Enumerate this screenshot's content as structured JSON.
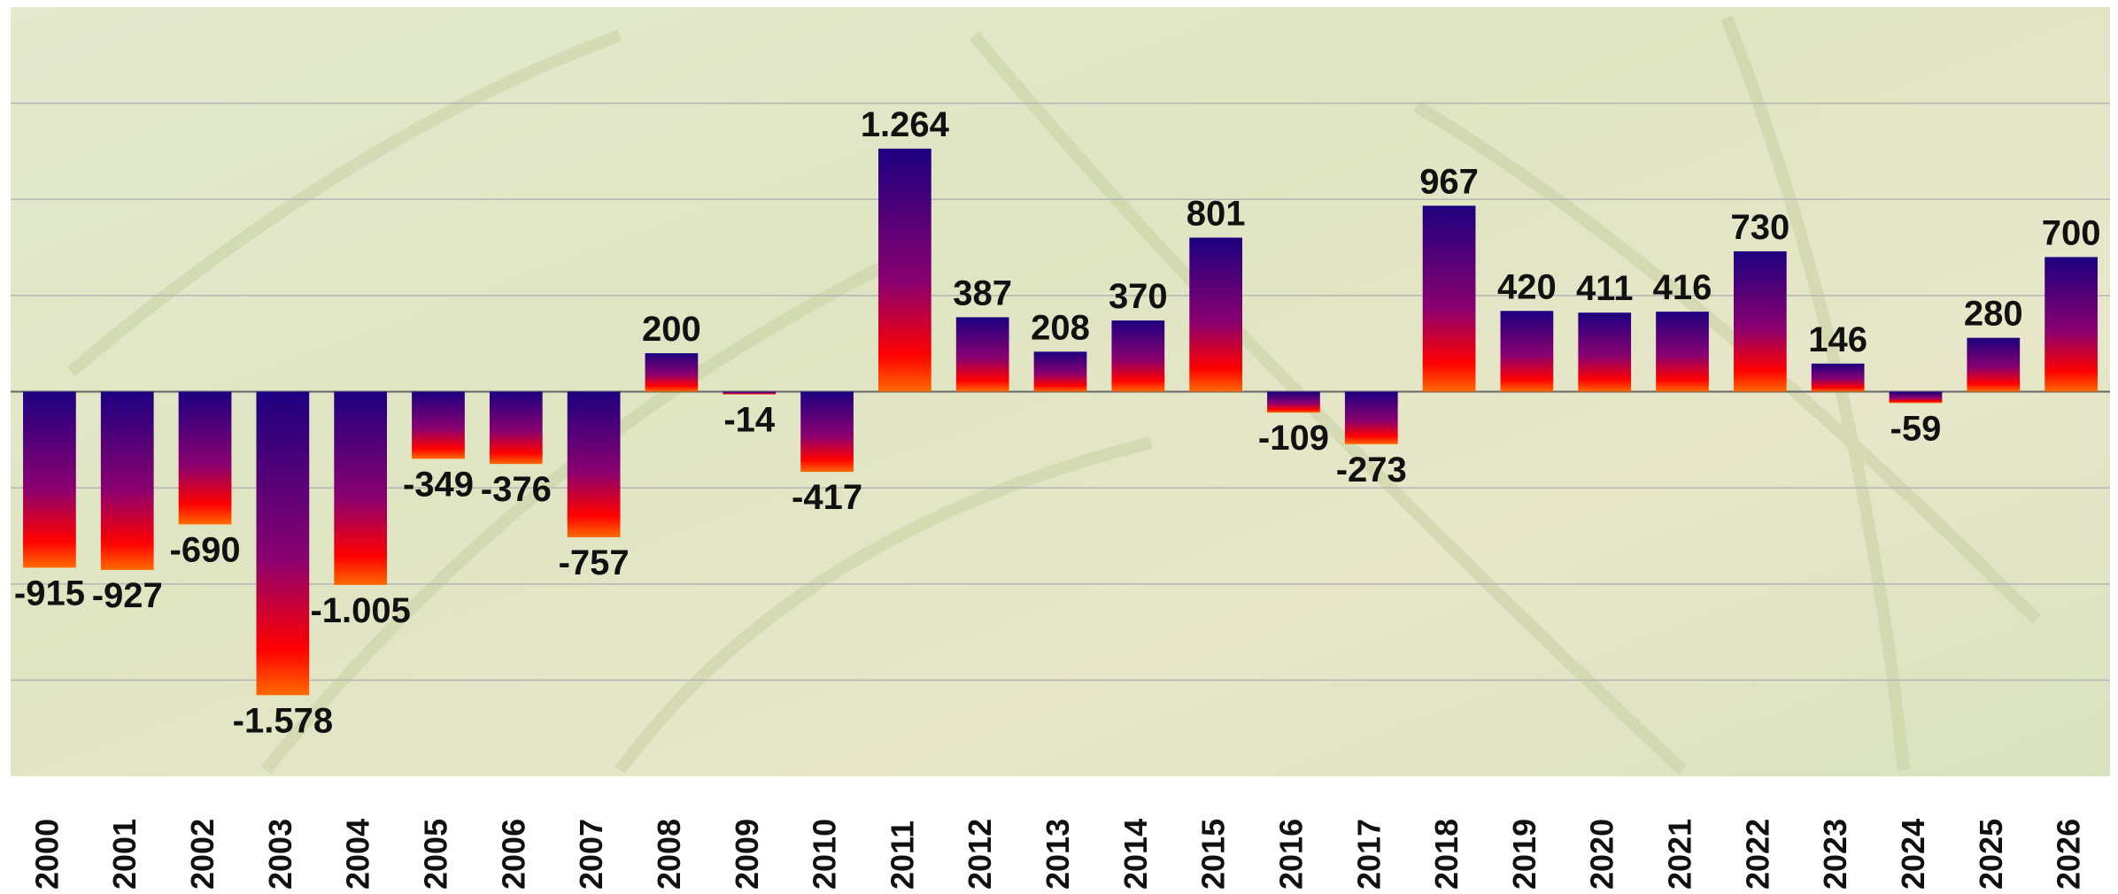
{
  "chart_data": {
    "type": "bar",
    "categories": [
      "2000",
      "2001",
      "2002",
      "2003",
      "2004",
      "2005",
      "2006",
      "2007",
      "2008",
      "2009",
      "2010",
      "2011",
      "2012",
      "2013",
      "2014",
      "2015",
      "2016",
      "2017",
      "2018",
      "2019",
      "2020",
      "2021",
      "2022",
      "2023",
      "2024",
      "2025",
      "2026"
    ],
    "values": [
      -915,
      -927,
      -690,
      -1578,
      -1005,
      -349,
      -376,
      -757,
      200,
      -14,
      -417,
      1264,
      387,
      208,
      370,
      801,
      -109,
      -273,
      967,
      420,
      411,
      416,
      730,
      146,
      -59,
      280,
      700
    ],
    "value_labels": [
      "-915",
      "-927",
      "-690",
      "-1.578",
      "-1.005",
      "-349",
      "-376",
      "-757",
      "200",
      "-14",
      "-417",
      "1.264",
      "387",
      "208",
      "370",
      "801",
      "-109",
      "-273",
      "967",
      "420",
      "411",
      "416",
      "730",
      "146",
      "-59",
      "280",
      "700"
    ],
    "colors": [
      "#1c0080",
      "#ff0000",
      "#ff6a00"
    ],
    "ylim": [
      -2000,
      2000
    ],
    "yticks": [
      -1500,
      -1000,
      -500,
      0,
      500,
      1000,
      1500
    ],
    "grid": true
  }
}
